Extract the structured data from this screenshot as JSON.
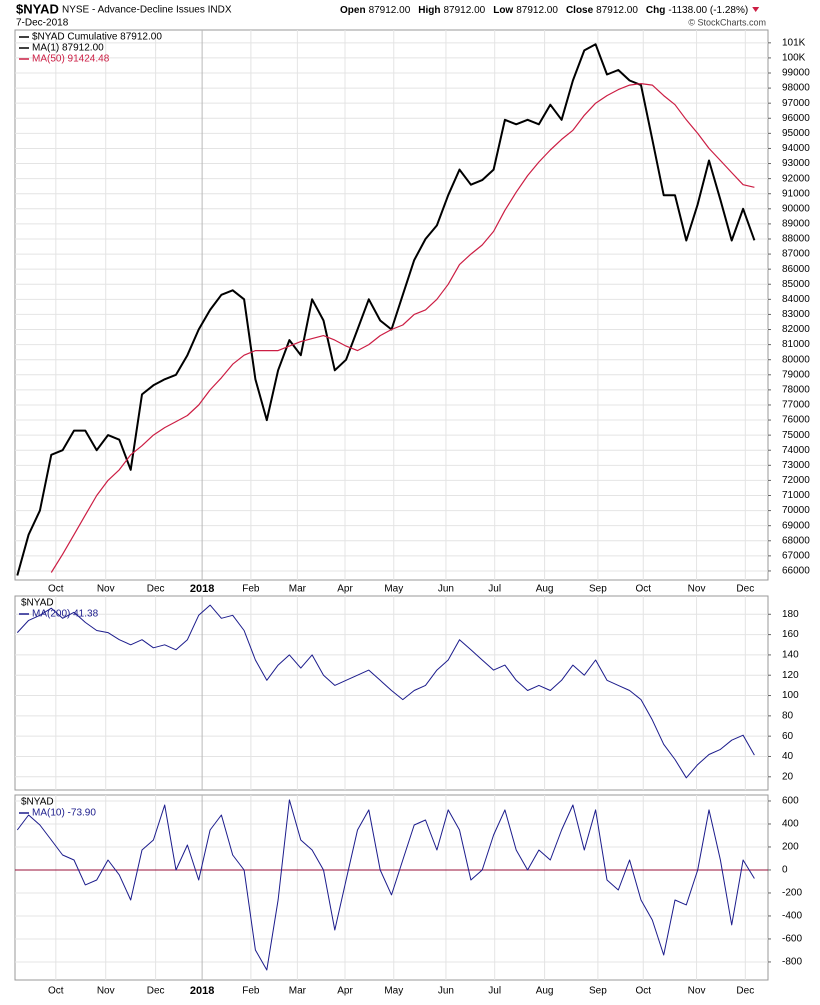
{
  "header": {
    "symbol": "$NYAD",
    "name": "NYSE - Advance-Decline Issues INDX",
    "date": "7-Dec-2018",
    "copyright": "© StockCharts.com",
    "quote": [
      {
        "label": "Open",
        "value": "87912.00"
      },
      {
        "label": "High",
        "value": "87912.00"
      },
      {
        "label": "Low",
        "value": "87912.00"
      },
      {
        "label": "Close",
        "value": "87912.00"
      },
      {
        "label": "Chg",
        "value": "-1138.00 (-1.28%)"
      }
    ],
    "change_color": "#cc1e44"
  },
  "chart_data": [
    {
      "type": "line",
      "label": "$NYAD Cumulative 87912.00",
      "series": [
        {
          "name": "MA(1) 87912.00",
          "color": "#000000",
          "width": 2,
          "values": [
            65700,
            68400,
            70000,
            73700,
            74000,
            75300,
            75300,
            74000,
            75000,
            74700,
            72700,
            77700,
            78300,
            78700,
            79000,
            80300,
            82000,
            83300,
            84300,
            84600,
            84000,
            78700,
            76000,
            79300,
            81300,
            80300,
            84000,
            82600,
            79300,
            80000,
            82000,
            84000,
            82600,
            82000,
            84300,
            86600,
            88000,
            88900,
            90900,
            92600,
            91600,
            91900,
            92600,
            95900,
            95600,
            95900,
            95600,
            96900,
            95900,
            98500,
            100500,
            100900,
            98900,
            99200,
            98500,
            98200,
            94600,
            90900,
            90900,
            87900,
            90300,
            93200,
            90600,
            87900,
            90000,
            87912
          ]
        },
        {
          "name": "MA(50) 91424.48",
          "color": "#cc1e44",
          "width": 1.2,
          "values": [
            null,
            null,
            null,
            65900,
            67100,
            68400,
            69700,
            71000,
            72000,
            72700,
            73700,
            74300,
            75000,
            75500,
            75900,
            76300,
            77000,
            78000,
            78800,
            79700,
            80300,
            80600,
            80600,
            80600,
            80900,
            81200,
            81400,
            81600,
            81300,
            80900,
            80600,
            81000,
            81600,
            82000,
            82300,
            83000,
            83300,
            84000,
            85000,
            86300,
            87000,
            87600,
            88500,
            89900,
            91100,
            92200,
            93100,
            93900,
            94600,
            95200,
            96200,
            97000,
            97500,
            97900,
            98200,
            98300,
            98200,
            97500,
            96900,
            95900,
            95000,
            94000,
            93200,
            92400,
            91600,
            91424.48
          ]
        }
      ],
      "xlim": [
        -0.2,
        66.2
      ],
      "xticks": [
        {
          "value": 3.4,
          "label": "Oct"
        },
        {
          "value": 7.8,
          "label": "Nov"
        },
        {
          "value": 12.2,
          "label": "Dec"
        },
        {
          "value": 16.3,
          "label": "2018",
          "major": true
        },
        {
          "value": 20.6,
          "label": "Feb"
        },
        {
          "value": 24.7,
          "label": "Mar"
        },
        {
          "value": 28.9,
          "label": "Apr"
        },
        {
          "value": 33.2,
          "label": "May"
        },
        {
          "value": 37.8,
          "label": "Jun"
        },
        {
          "value": 42.1,
          "label": "Jul"
        },
        {
          "value": 46.5,
          "label": "Aug"
        },
        {
          "value": 51.2,
          "label": "Sep"
        },
        {
          "value": 55.2,
          "label": "Oct"
        },
        {
          "value": 59.9,
          "label": "Nov"
        },
        {
          "value": 64.2,
          "label": "Dec"
        }
      ],
      "ylim": [
        65400,
        101850
      ],
      "yticks": [
        66000,
        67000,
        68000,
        69000,
        70000,
        71000,
        72000,
        73000,
        74000,
        75000,
        76000,
        77000,
        78000,
        79000,
        80000,
        81000,
        82000,
        83000,
        84000,
        85000,
        86000,
        87000,
        88000,
        89000,
        90000,
        91000,
        92000,
        93000,
        94000,
        95000,
        96000,
        97000,
        98000,
        99000,
        {
          "value": 100000,
          "label": "100K"
        },
        {
          "value": 101000,
          "label": "101K"
        }
      ],
      "grid": true
    },
    {
      "type": "line",
      "label": "$NYAD",
      "series": [
        {
          "name": "MA(200) 41.38",
          "color": "#1c1c8c",
          "width": 1,
          "values": [
            162,
            174,
            179,
            186,
            176,
            182,
            172,
            164,
            162,
            155,
            150,
            155,
            147,
            150,
            145,
            155,
            179,
            189,
            176,
            179,
            164,
            135,
            115,
            130,
            140,
            127,
            140,
            120,
            110,
            115,
            120,
            125,
            115,
            105,
            96,
            105,
            110,
            125,
            135,
            155,
            145,
            135,
            125,
            130,
            115,
            105,
            110,
            105,
            115,
            130,
            120,
            135,
            115,
            110,
            105,
            96,
            76,
            52,
            37,
            19,
            32,
            42,
            47,
            56,
            61,
            41.38
          ]
        }
      ],
      "xlim": [
        -0.2,
        66.2
      ],
      "ylim": [
        7,
        198
      ],
      "yticks": [
        20,
        40,
        60,
        80,
        100,
        120,
        140,
        160,
        180
      ],
      "grid": true
    },
    {
      "type": "line",
      "label": "$NYAD",
      "series": [
        {
          "name": "MA(10) -73.90",
          "color": "#1c1c8c",
          "width": 1,
          "values": [
            348,
            478,
            391,
            261,
            130,
            87,
            -130,
            -87,
            87,
            -43,
            -261,
            174,
            261,
            565,
            0,
            217,
            -87,
            348,
            478,
            130,
            0,
            -696,
            -870,
            -261,
            609,
            261,
            174,
            0,
            -522,
            -87,
            348,
            522,
            0,
            -217,
            87,
            391,
            435,
            174,
            522,
            348,
            -87,
            0,
            304,
            522,
            174,
            0,
            174,
            87,
            348,
            565,
            174,
            522,
            -87,
            -174,
            87,
            -261,
            -435,
            -740,
            -261,
            -304,
            0,
            522,
            87,
            -478,
            87,
            -73.9
          ]
        }
      ],
      "xlim": [
        -0.2,
        66.2
      ],
      "xticks": [
        {
          "value": 3.4,
          "label": "Oct"
        },
        {
          "value": 7.8,
          "label": "Nov"
        },
        {
          "value": 12.2,
          "label": "Dec"
        },
        {
          "value": 16.3,
          "label": "2018",
          "major": true
        },
        {
          "value": 20.6,
          "label": "Feb"
        },
        {
          "value": 24.7,
          "label": "Mar"
        },
        {
          "value": 28.9,
          "label": "Apr"
        },
        {
          "value": 33.2,
          "label": "May"
        },
        {
          "value": 37.8,
          "label": "Jun"
        },
        {
          "value": 42.1,
          "label": "Jul"
        },
        {
          "value": 46.5,
          "label": "Aug"
        },
        {
          "value": 51.2,
          "label": "Sep"
        },
        {
          "value": 55.2,
          "label": "Oct"
        },
        {
          "value": 59.9,
          "label": "Nov"
        },
        {
          "value": 64.2,
          "label": "Dec"
        }
      ],
      "ylim": [
        -957,
        652
      ],
      "yticks": [
        -800,
        -600,
        -400,
        -200,
        0,
        200,
        400,
        600
      ],
      "hlines": [
        {
          "value": 0,
          "color": "#99103a"
        }
      ],
      "grid": true
    }
  ]
}
